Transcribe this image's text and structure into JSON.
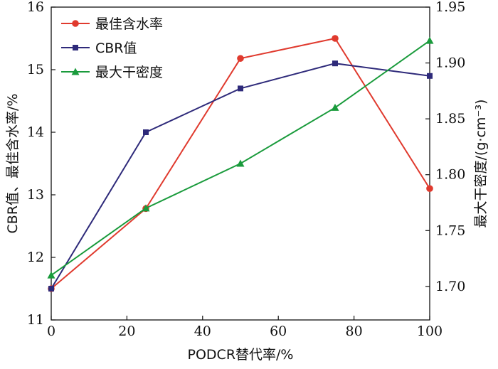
{
  "chart_data": {
    "type": "line",
    "x": [
      0,
      25,
      50,
      75,
      100
    ],
    "xlabel": "PODCR替代率/%",
    "ylabel_left": "CBR值、最佳含水率/%",
    "ylabel_right": "最大干密度/(g·cm⁻³)",
    "xlim": [
      0,
      100
    ],
    "ylim_left": [
      11,
      16
    ],
    "ylim_right": [
      1.67,
      1.95
    ],
    "x_ticks": [
      "0",
      "20",
      "40",
      "60",
      "80",
      "100"
    ],
    "y_left_ticks": [
      "11",
      "12",
      "13",
      "14",
      "15",
      "16"
    ],
    "y_right_ticks": [
      "1.70",
      "1.75",
      "1.80",
      "1.85",
      "1.90",
      "1.95"
    ],
    "legend_position": "top-left",
    "grid": false,
    "series": [
      {
        "name": "最佳含水率",
        "axis": "left",
        "marker": "circle",
        "color": "#e03a2e",
        "values": [
          11.5,
          12.78,
          15.18,
          15.5,
          13.1
        ]
      },
      {
        "name": "CBR值",
        "axis": "left",
        "marker": "square",
        "color": "#2e2a7a",
        "values": [
          11.5,
          14.0,
          14.7,
          15.1,
          14.9
        ]
      },
      {
        "name": "最大干密度",
        "axis": "right",
        "marker": "triangle",
        "color": "#1a9b3c",
        "values": [
          1.71,
          1.77,
          1.81,
          1.86,
          1.92
        ]
      }
    ]
  }
}
